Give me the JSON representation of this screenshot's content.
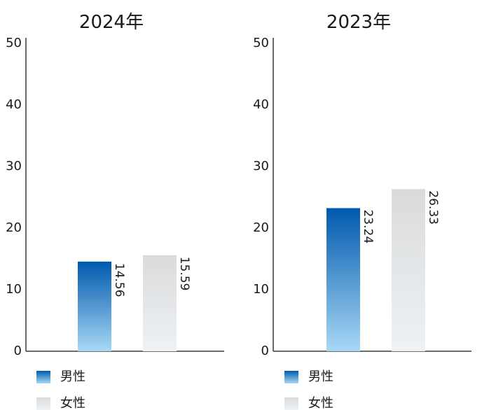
{
  "chart_data": [
    {
      "type": "bar",
      "title": "2024年",
      "categories": [
        "男性",
        "女性"
      ],
      "values": [
        14.56,
        15.59
      ],
      "value_labels": [
        "14.56",
        "15.59"
      ],
      "ylim": [
        0,
        50
      ],
      "yticks": [
        "0",
        "10",
        "20",
        "30",
        "40",
        "50"
      ],
      "grid": false
    },
    {
      "type": "bar",
      "title": "2023年",
      "categories": [
        "男性",
        "女性"
      ],
      "values": [
        23.24,
        26.33
      ],
      "value_labels": [
        "23.24",
        "26.33"
      ],
      "ylim": [
        0,
        50
      ],
      "yticks": [
        "0",
        "10",
        "20",
        "30",
        "40",
        "50"
      ],
      "grid": false
    }
  ],
  "legend": [
    {
      "label": "男性",
      "icon": "blue-gradient-swatch"
    },
    {
      "label": "女性",
      "icon": "gray-gradient-swatch"
    }
  ],
  "colors": {
    "male_top": "#0059ae",
    "male_bottom": "#a8d8f5",
    "female_top": "#d9dadb",
    "female_bottom": "#eef2f5",
    "axis": "#3a3a3a",
    "text": "#1a1a1a"
  }
}
